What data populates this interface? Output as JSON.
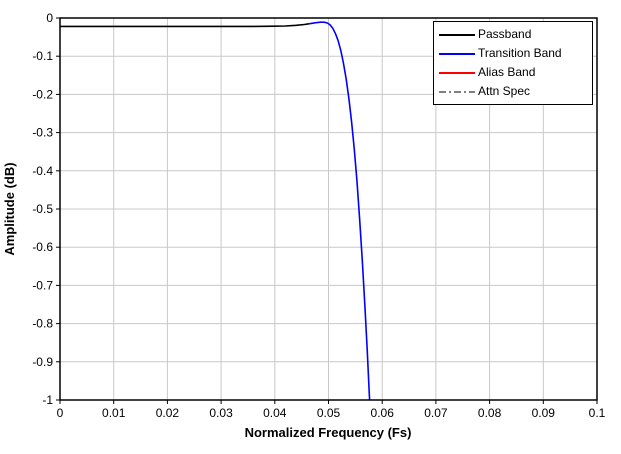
{
  "chart_data": {
    "type": "line",
    "title": "",
    "xlabel": "Normalized Frequency (Fs)",
    "ylabel": "Amplitude (dB)",
    "xlim": [
      0,
      0.1
    ],
    "ylim": [
      -1,
      0
    ],
    "grid": true,
    "grid_color": "#c8c8c8",
    "background_color": "#ffffff",
    "axis_color": "#000000",
    "xticks": [
      0,
      0.01,
      0.02,
      0.03,
      0.04,
      0.05,
      0.06,
      0.07,
      0.08,
      0.09,
      0.1
    ],
    "xtick_labels": [
      "0",
      "0.01",
      "0.02",
      "0.03",
      "0.04",
      "0.05",
      "0.06",
      "0.07",
      "0.08",
      "0.09",
      "0.1"
    ],
    "yticks": [
      0,
      -0.1,
      -0.2,
      -0.3,
      -0.4,
      -0.5,
      -0.6,
      -0.7,
      -0.8,
      -0.9,
      -1
    ],
    "ytick_labels": [
      "0",
      "-0.1",
      "-0.2",
      "-0.3",
      "-0.4",
      "-0.5",
      "-0.6",
      "-0.7",
      "-0.8",
      "-0.9",
      "-1"
    ],
    "legend": {
      "position": "top-right",
      "items": [
        {
          "label": "Passband",
          "color": "#000000",
          "style": "solid"
        },
        {
          "label": "Transition Band",
          "color": "#0000ff",
          "style": "solid"
        },
        {
          "label": "Alias Band",
          "color": "#ff0000",
          "style": "solid"
        },
        {
          "label": "Attn Spec",
          "color": "#808080",
          "style": "dash-dot"
        }
      ]
    },
    "series": [
      {
        "name": "Passband",
        "color": "#000000",
        "style": "solid",
        "points": [
          [
            0.0,
            -0.022
          ],
          [
            0.004,
            -0.022
          ],
          [
            0.008,
            -0.022
          ],
          [
            0.012,
            -0.022
          ],
          [
            0.016,
            -0.022
          ],
          [
            0.02,
            -0.022
          ],
          [
            0.024,
            -0.022
          ],
          [
            0.028,
            -0.022
          ],
          [
            0.032,
            -0.022
          ],
          [
            0.036,
            -0.022
          ],
          [
            0.04,
            -0.0215
          ],
          [
            0.042,
            -0.021
          ],
          [
            0.044,
            -0.019
          ],
          [
            0.0455,
            -0.017
          ],
          [
            0.0465,
            -0.015
          ]
        ]
      },
      {
        "name": "Transition Band",
        "color": "#0000ff",
        "style": "solid",
        "points": [
          [
            0.0465,
            -0.015
          ],
          [
            0.0475,
            -0.0125
          ],
          [
            0.0485,
            -0.011
          ],
          [
            0.0492,
            -0.011
          ],
          [
            0.0498,
            -0.013
          ],
          [
            0.0503,
            -0.018
          ],
          [
            0.0508,
            -0.027
          ],
          [
            0.0513,
            -0.041
          ],
          [
            0.0518,
            -0.06
          ],
          [
            0.0523,
            -0.086
          ],
          [
            0.0528,
            -0.119
          ],
          [
            0.0533,
            -0.16
          ],
          [
            0.0538,
            -0.211
          ],
          [
            0.0543,
            -0.272
          ],
          [
            0.0548,
            -0.344
          ],
          [
            0.0553,
            -0.428
          ],
          [
            0.0558,
            -0.525
          ],
          [
            0.0563,
            -0.635
          ],
          [
            0.0568,
            -0.759
          ],
          [
            0.0572,
            -0.868
          ],
          [
            0.0576,
            -0.985
          ],
          [
            0.05765,
            -1.0
          ]
        ]
      },
      {
        "name": "Alias Band",
        "color": "#ff0000",
        "style": "solid",
        "points": []
      },
      {
        "name": "Attn Spec",
        "color": "#808080",
        "style": "dash-dot",
        "points": []
      }
    ]
  }
}
